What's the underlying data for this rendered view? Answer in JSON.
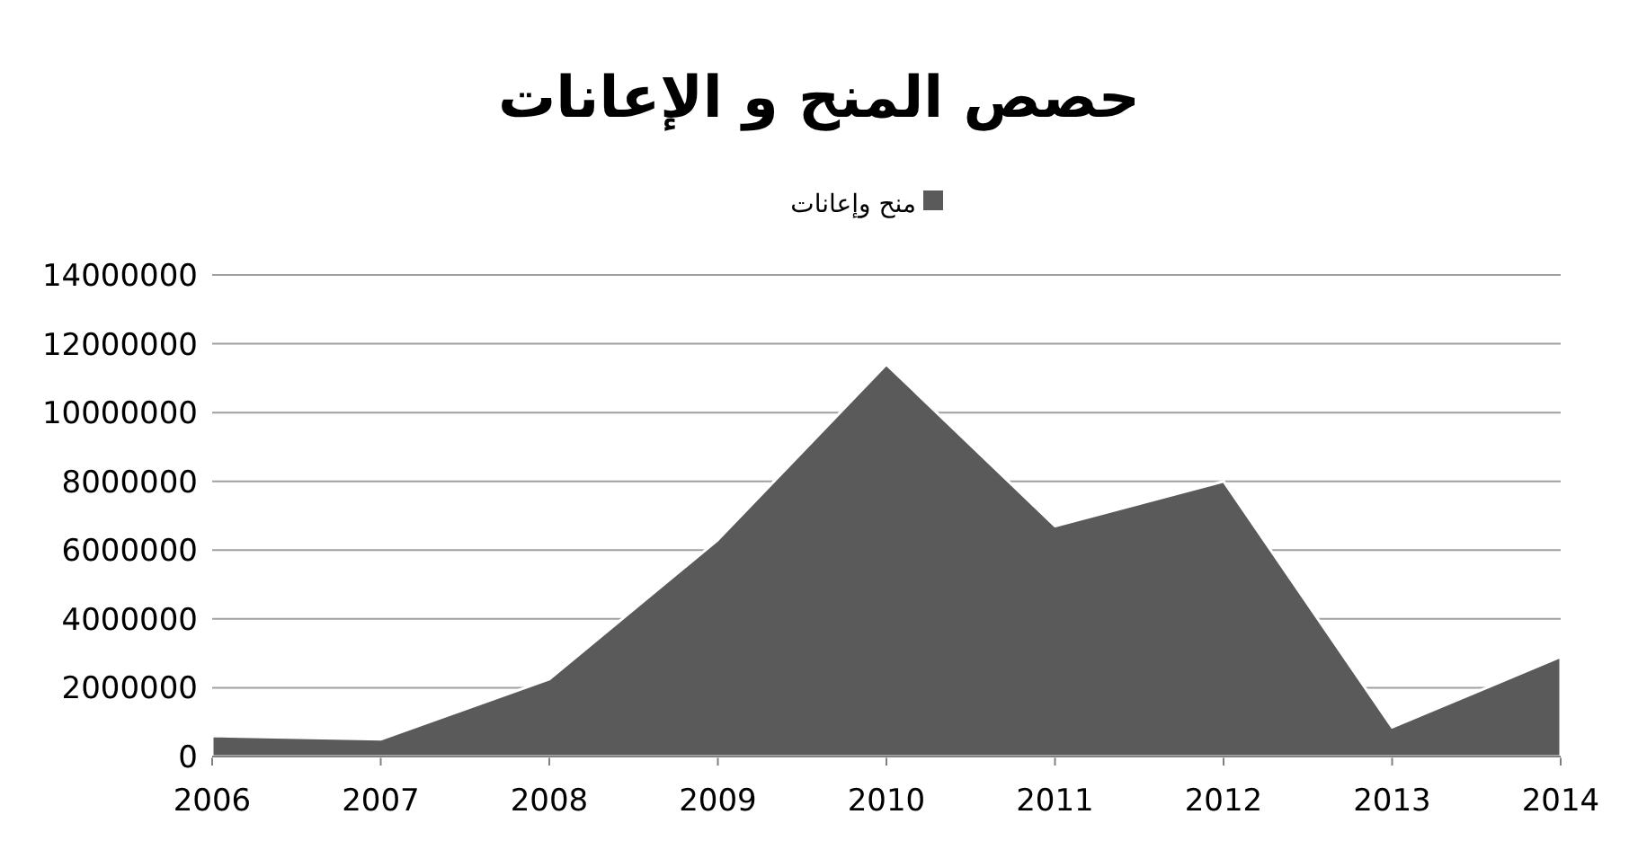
{
  "chart_data": {
    "type": "area",
    "title": "حصص المنح و الإعانات",
    "x": [
      2006,
      2007,
      2008,
      2009,
      2010,
      2011,
      2012,
      2013,
      2014
    ],
    "series": [
      {
        "name": "منح وإعانات",
        "color": "#5a5a5a",
        "values": [
          600000,
          500000,
          2250000,
          6300000,
          11400000,
          6700000,
          8000000,
          850000,
          2900000
        ]
      }
    ],
    "xlim": [
      2006,
      2014
    ],
    "xticks": [
      2006,
      2007,
      2008,
      2009,
      2010,
      2011,
      2012,
      2013,
      2014
    ],
    "ylim": [
      0,
      14000000
    ],
    "yticks": [
      0,
      2000000,
      4000000,
      6000000,
      8000000,
      10000000,
      12000000,
      14000000
    ],
    "grid": "y",
    "legend": "top"
  }
}
